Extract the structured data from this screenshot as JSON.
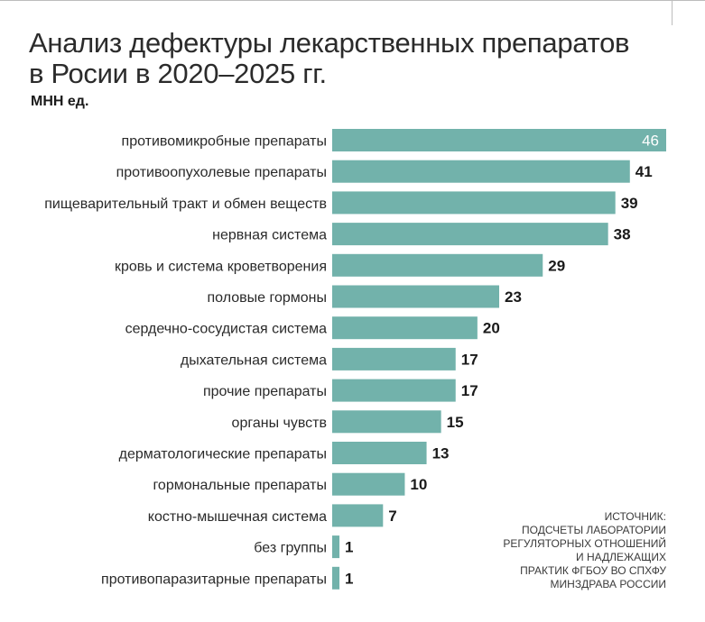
{
  "chart_data": {
    "type": "bar",
    "orientation": "horizontal",
    "title": "Анализ дефектуры лекарственных препаратов в Росии в 2020–2025 гг.",
    "title_lines": [
      "Анализ дефектуры лекарственных препаратов",
      "в Росии в 2020–2025 гг."
    ],
    "subtitle": "МНН ед.",
    "categories": [
      "противомикробные препараты",
      "противоопухолевые препараты",
      "пищеварительный тракт и обмен веществ",
      "нервная система",
      "кровь и система кроветворения",
      "половые гормоны",
      "сердечно-сосудистая система",
      "дыхательная система",
      "прочие препараты",
      "органы чувств",
      "дерматологические препараты",
      "гормональные препараты",
      "костно-мышечная система",
      "без группы",
      "противопаразитарные препараты"
    ],
    "values": [
      46,
      41,
      39,
      38,
      29,
      23,
      20,
      17,
      17,
      15,
      13,
      10,
      7,
      1,
      1
    ],
    "xlim": [
      0,
      46
    ],
    "grid": false,
    "legend": false,
    "bar_color": "#72b2ab"
  },
  "source_lines": [
    "Источник:",
    "подсчеты лаборатории",
    "регуляторных отношений",
    "и надлежащих",
    "практик ФГБОУ ВО СПХФУ",
    "Минздрава России"
  ]
}
